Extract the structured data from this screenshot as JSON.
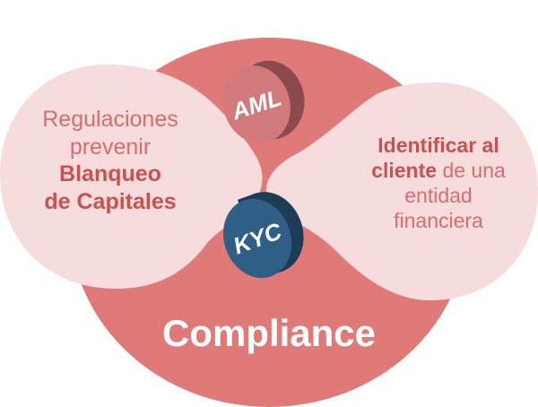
{
  "left_bubble": {
    "line1": "Regulaciones",
    "line2": "prevenir",
    "bold_line1": "Blanqueo",
    "bold_line2": "de Capitales"
  },
  "right_bubble": {
    "bold_line1": "Identificar al",
    "bold_word": "cliente",
    "rest_line2": " de una",
    "line3": "entidad",
    "line4": "financiera"
  },
  "coins": {
    "top": "AML",
    "bottom": "KYC"
  },
  "title": "Compliance",
  "colors": {
    "main_circle": "#e07a78",
    "bubble": "#f6dcdc",
    "aml_face": "#d27a7b",
    "aml_side": "#8b4a4d",
    "kyc_face": "#2f5f86",
    "kyc_side": "#1d3c57",
    "text_accent": "#c9524f"
  }
}
